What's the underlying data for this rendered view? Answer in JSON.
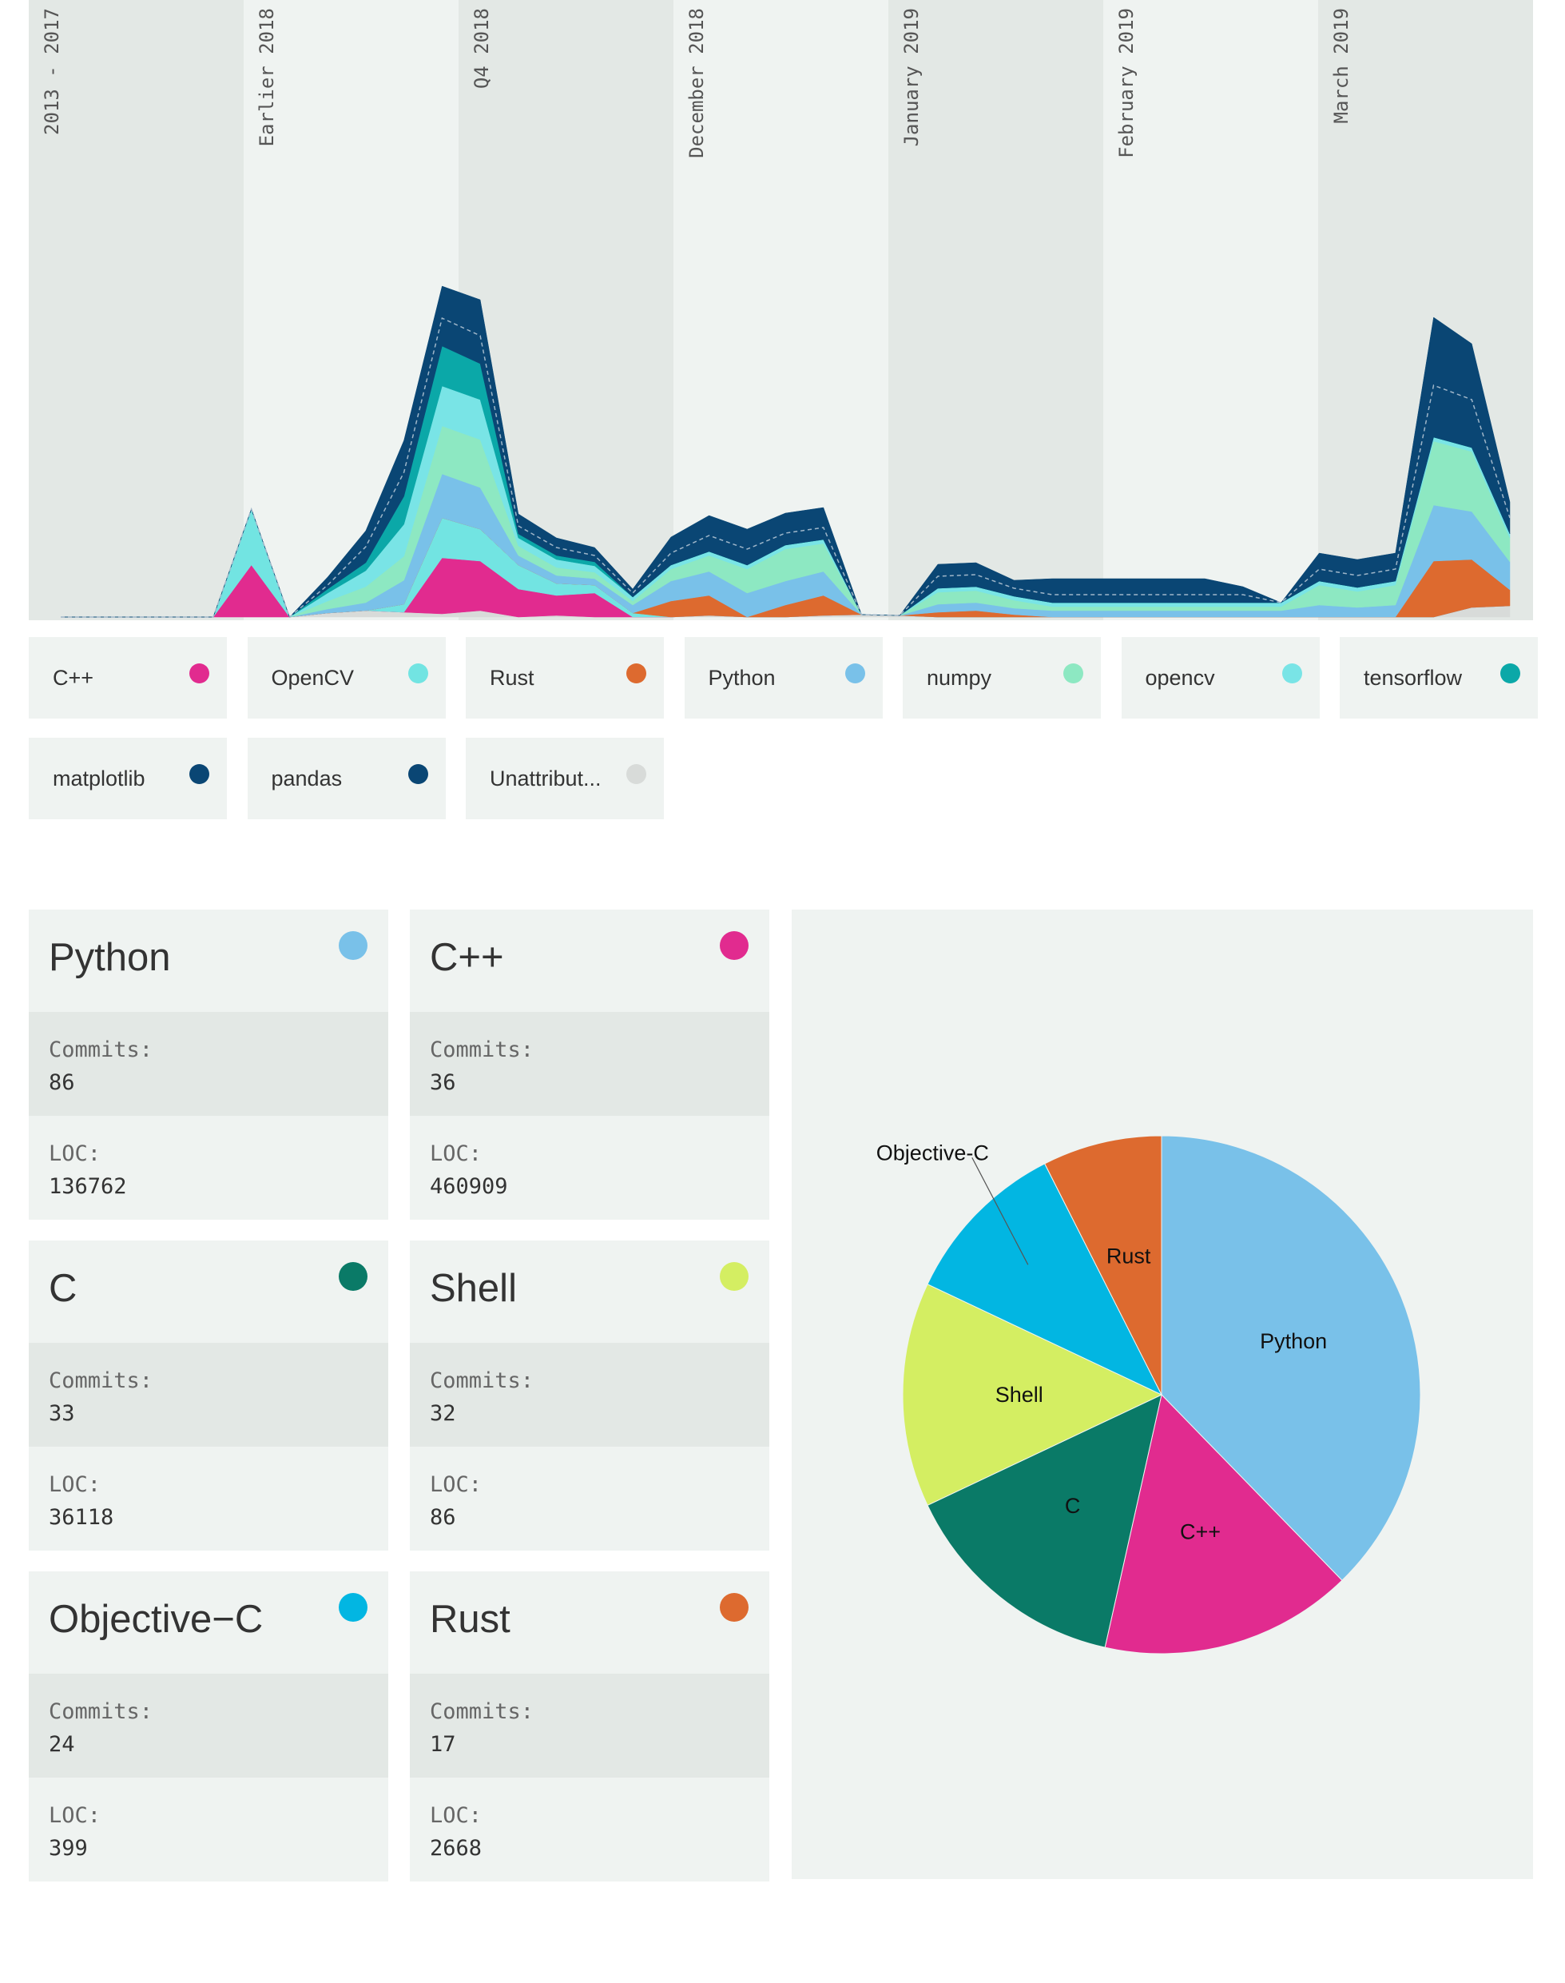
{
  "chart_data": [
    {
      "type": "area",
      "stacked": true,
      "periods": [
        "2013 - 2017",
        "Earlier 2018",
        "Q4 2018",
        "December 2018",
        "January 2019",
        "February 2019",
        "March 2019"
      ],
      "series": [
        {
          "name": "Unattributed",
          "color": "#d8dbd9",
          "values": [
            0,
            0,
            0,
            0,
            0,
            0,
            0,
            5,
            8,
            6,
            4,
            8,
            0,
            2,
            0,
            0,
            0,
            2,
            0,
            0,
            2,
            3,
            2,
            0,
            0,
            0,
            0,
            0,
            0,
            0,
            0,
            0,
            0,
            0,
            0,
            0,
            0,
            12,
            14
          ]
        },
        {
          "name": "C++",
          "color": "#e12b8f",
          "values": [
            0,
            0,
            0,
            0,
            0,
            65,
            0,
            0,
            0,
            0,
            70,
            62,
            35,
            25,
            30,
            0,
            0,
            0,
            0,
            0,
            0,
            0,
            0,
            0,
            0,
            0,
            0,
            0,
            0,
            0,
            0,
            0,
            0,
            0,
            0,
            0,
            0,
            0,
            0
          ]
        },
        {
          "name": "OpenCV",
          "color": "#72e4e2",
          "values": [
            0,
            0,
            0,
            0,
            0,
            70,
            0,
            0,
            0,
            10,
            50,
            40,
            30,
            15,
            10,
            5,
            0,
            0,
            0,
            0,
            0,
            0,
            0,
            0,
            0,
            0,
            0,
            0,
            0,
            0,
            0,
            0,
            0,
            0,
            0,
            0,
            0,
            0,
            0
          ]
        },
        {
          "name": "Rust",
          "color": "#dd6a2f",
          "values": [
            0,
            0,
            0,
            0,
            0,
            0,
            0,
            0,
            0,
            0,
            0,
            0,
            0,
            0,
            0,
            0,
            20,
            25,
            0,
            15,
            25,
            0,
            0,
            6,
            8,
            3,
            0,
            0,
            0,
            0,
            0,
            0,
            0,
            0,
            0,
            0,
            70,
            60,
            20
          ]
        },
        {
          "name": "Python",
          "color": "#79c1e9",
          "values": [
            0,
            0,
            0,
            0,
            0,
            0,
            0,
            5,
            10,
            30,
            55,
            52,
            12,
            10,
            8,
            10,
            25,
            30,
            30,
            30,
            30,
            0,
            0,
            10,
            10,
            8,
            8,
            8,
            8,
            8,
            8,
            8,
            8,
            15,
            12,
            15,
            70,
            60,
            35
          ]
        },
        {
          "name": "numpy",
          "color": "#8de8c2",
          "values": [
            0,
            0,
            0,
            0,
            0,
            0,
            0,
            10,
            20,
            30,
            60,
            60,
            12,
            10,
            8,
            5,
            15,
            20,
            30,
            40,
            35,
            0,
            0,
            15,
            15,
            10,
            5,
            5,
            5,
            5,
            5,
            5,
            5,
            25,
            20,
            25,
            80,
            75,
            30
          ]
        },
        {
          "name": "opencv",
          "color": "#79e4e6",
          "values": [
            0,
            0,
            0,
            0,
            0,
            0,
            0,
            10,
            20,
            40,
            50,
            50,
            10,
            10,
            8,
            5,
            5,
            5,
            5,
            5,
            5,
            0,
            0,
            5,
            5,
            5,
            5,
            5,
            5,
            5,
            5,
            5,
            5,
            5,
            5,
            5,
            5,
            5,
            5
          ]
        },
        {
          "name": "tensorflow",
          "color": "#0ba8a8",
          "values": [
            0,
            0,
            0,
            0,
            0,
            0,
            0,
            5,
            10,
            35,
            50,
            45,
            5,
            5,
            5,
            0,
            0,
            0,
            0,
            0,
            0,
            0,
            0,
            0,
            0,
            0,
            0,
            0,
            0,
            0,
            0,
            0,
            0,
            0,
            0,
            0,
            0,
            0,
            0
          ]
        },
        {
          "name": "matplotlib",
          "color": "#0a4674",
          "values": [
            0,
            0,
            0,
            0,
            0,
            0,
            0,
            5,
            20,
            30,
            35,
            35,
            10,
            10,
            8,
            5,
            15,
            20,
            20,
            15,
            15,
            0,
            0,
            15,
            15,
            10,
            10,
            10,
            10,
            10,
            10,
            10,
            0,
            15,
            15,
            15,
            65,
            60,
            20
          ]
        },
        {
          "name": "pandas",
          "color": "#0a4674",
          "values": [
            0,
            0,
            0,
            0,
            0,
            0,
            0,
            10,
            20,
            40,
            40,
            45,
            15,
            12,
            10,
            5,
            20,
            25,
            25,
            25,
            25,
            0,
            0,
            15,
            15,
            10,
            20,
            20,
            20,
            20,
            20,
            10,
            0,
            20,
            20,
            20,
            85,
            70,
            20
          ]
        }
      ],
      "legend_labels": [
        "C++",
        "OpenCV",
        "Rust",
        "Python",
        "numpy",
        "opencv",
        "tensorflow",
        "matplotlib",
        "pandas",
        "Unattribut..."
      ],
      "legend_placement": "bottom"
    },
    {
      "type": "pie",
      "slices": [
        {
          "label": "Python",
          "value": 86,
          "color": "#79c1e9"
        },
        {
          "label": "C++",
          "value": 36,
          "color": "#e12b8f"
        },
        {
          "label": "C",
          "value": 33,
          "color": "#0a7a67"
        },
        {
          "label": "Shell",
          "value": 32,
          "color": "#d4ee62"
        },
        {
          "label": "Objective-C",
          "value": 24,
          "color": "#02b6e2"
        },
        {
          "label": "Rust",
          "value": 17,
          "color": "#dd6a2f"
        }
      ]
    }
  ],
  "languages": [
    {
      "name": "Python",
      "color": "#79c1e9",
      "commits_label": "Commits:",
      "commits": "86",
      "loc_label": "LOC:",
      "loc": "136762"
    },
    {
      "name": "C++",
      "color": "#e12b8f",
      "commits_label": "Commits:",
      "commits": "36",
      "loc_label": "LOC:",
      "loc": "460909"
    },
    {
      "name": "C",
      "color": "#0a7a67",
      "commits_label": "Commits:",
      "commits": "33",
      "loc_label": "LOC:",
      "loc": "36118"
    },
    {
      "name": "Shell",
      "color": "#d4ee62",
      "commits_label": "Commits:",
      "commits": "32",
      "loc_label": "LOC:",
      "loc": "86"
    },
    {
      "name": "Objective−C",
      "color": "#02b6e2",
      "commits_label": "Commits:",
      "commits": "24",
      "loc_label": "LOC:",
      "loc": "399"
    },
    {
      "name": "Rust",
      "color": "#dd6a2f",
      "commits_label": "Commits:",
      "commits": "17",
      "loc_label": "LOC:",
      "loc": "2668"
    }
  ]
}
